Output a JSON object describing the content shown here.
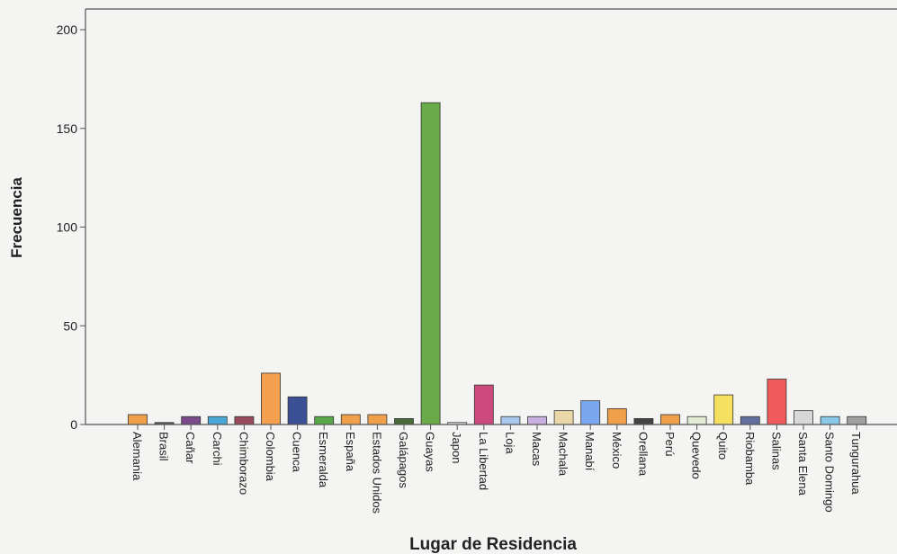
{
  "chart_data": {
    "type": "bar",
    "xlabel": "Lugar de Residencia",
    "ylabel": "Frecuencia",
    "ylim": [
      0,
      210
    ],
    "yticks": [
      0,
      50,
      100,
      150,
      200
    ],
    "grid": false,
    "categories": [
      "Alemania",
      "Brasil",
      "Cañar",
      "Carchi",
      "Chimborazo",
      "Colombia",
      "Cuenca",
      "Esmeralda",
      "España",
      "Estados Unidos",
      "Galápagos",
      "Guayas",
      "Japon",
      "La Libertad",
      "Loja",
      "Macas",
      "Machala",
      "Manabí",
      "México",
      "Orellana",
      "Perú",
      "Quevedo",
      "Quito",
      "Riobamba",
      "Salinas",
      "Santa Elena",
      "Santo Domingo",
      "Tungurahua"
    ],
    "values": [
      5,
      1,
      4,
      4,
      4,
      26,
      14,
      4,
      5,
      5,
      3,
      163,
      1,
      20,
      4,
      4,
      7,
      12,
      8,
      3,
      5,
      4,
      15,
      4,
      23,
      7,
      4,
      4
    ],
    "colors": [
      "#f0a04b",
      "#5a5a5a",
      "#7b4a8a",
      "#4aa8d8",
      "#9a4a5a",
      "#f5a050",
      "#3a4f94",
      "#58a84a",
      "#f0a04b",
      "#f0a04b",
      "#4a6a3a",
      "#6aaa48",
      "#e8e8e8",
      "#cc4a7c",
      "#a8c8ee",
      "#c8b0e0",
      "#ead7a8",
      "#7aa8f0",
      "#f0a04b",
      "#444444",
      "#f0a04b",
      "#e2ecd4",
      "#f5e060",
      "#606ea0",
      "#f05a5a",
      "#d8d8d8",
      "#88c8e8",
      "#a0a0a0"
    ]
  }
}
